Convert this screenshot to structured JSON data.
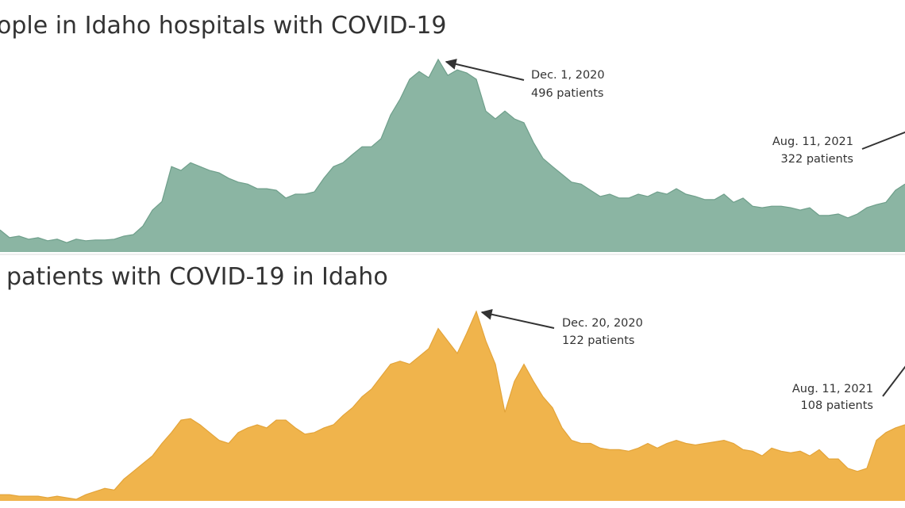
{
  "chart_data": [
    {
      "type": "area",
      "title": "ople in Idaho hospitals with COVID-19",
      "color": "#8bb5a3",
      "line_color": "#6f9f8b",
      "values": [
        57,
        37,
        41,
        33,
        37,
        29,
        33,
        24,
        33,
        29,
        31,
        31,
        33,
        41,
        45,
        67,
        108,
        130,
        220,
        210,
        230,
        220,
        210,
        204,
        190,
        180,
        175,
        163,
        163,
        159,
        139,
        149,
        149,
        155,
        190,
        220,
        230,
        251,
        271,
        271,
        292,
        353,
        394,
        445,
        465,
        449,
        496,
        455,
        469,
        461,
        445,
        363,
        343,
        363,
        343,
        333,
        282,
        241,
        220,
        200,
        180,
        175,
        159,
        143,
        149,
        139,
        139,
        149,
        143,
        155,
        149,
        163,
        149,
        143,
        135,
        135,
        149,
        128,
        139,
        118,
        114,
        118,
        118,
        114,
        108,
        114,
        94,
        94,
        98,
        88,
        98,
        114,
        122,
        128,
        159,
        175
      ],
      "annotations": [
        {
          "date": "Dec. 1, 2020",
          "text": "496 patients"
        },
        {
          "date": "Aug. 11, 2021",
          "text": "322 patients"
        }
      ]
    },
    {
      "type": "area",
      "title": "patients with COVID-19 in Idaho",
      "color": "#f0b44c",
      "line_color": "#e3a43a",
      "values": [
        4,
        4,
        3,
        3,
        3,
        2,
        3,
        2,
        1,
        4,
        6,
        8,
        7,
        14,
        19,
        24,
        29,
        37,
        44,
        52,
        53,
        49,
        44,
        39,
        37,
        44,
        47,
        49,
        47,
        52,
        52,
        47,
        43,
        44,
        47,
        49,
        55,
        60,
        67,
        72,
        80,
        88,
        90,
        88,
        93,
        98,
        111,
        103,
        95,
        108,
        122,
        103,
        88,
        57,
        77,
        88,
        77,
        67,
        60,
        47,
        39,
        37,
        37,
        34,
        33,
        33,
        32,
        34,
        37,
        34,
        37,
        39,
        37,
        36,
        37,
        38,
        39,
        37,
        33,
        32,
        29,
        34,
        32,
        31,
        32,
        29,
        33,
        27,
        27,
        21,
        19,
        21,
        39,
        44,
        47,
        49
      ],
      "annotations": [
        {
          "date": "Dec. 20, 2020",
          "text": "122 patients"
        },
        {
          "date": "Aug. 11, 2021",
          "text": "108 patients"
        }
      ]
    }
  ]
}
